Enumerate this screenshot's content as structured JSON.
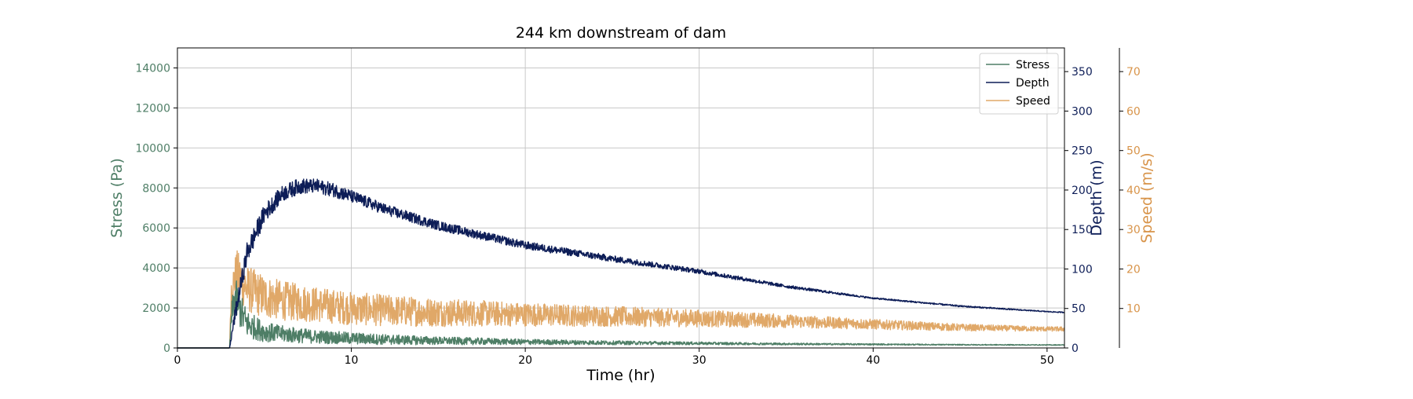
{
  "chart_data": {
    "type": "line",
    "title": "244 km downstream of dam",
    "xlabel": "Time (hr)",
    "xlim": [
      0,
      51
    ],
    "xticks": [
      0,
      10,
      20,
      30,
      40,
      50
    ],
    "grid": true,
    "legend_position": "top-right",
    "axes": [
      {
        "id": "stress",
        "side": "left",
        "label": "Stress (Pa)",
        "color": "#4e7e66",
        "ylim": [
          0,
          15000
        ],
        "ticks": [
          0,
          2000,
          4000,
          6000,
          8000,
          10000,
          12000,
          14000
        ]
      },
      {
        "id": "depth",
        "side": "right",
        "label": "Depth (m)",
        "color": "#0d1d57",
        "ylim": [
          0,
          380
        ],
        "ticks": [
          0,
          50,
          100,
          150,
          200,
          250,
          300,
          350
        ]
      },
      {
        "id": "speed",
        "side": "right-outer",
        "label": "Speed (m/s)",
        "color": "#d8944a",
        "ylim": [
          0,
          76
        ],
        "ticks": [
          10,
          20,
          30,
          40,
          50,
          60,
          70
        ]
      }
    ],
    "series": [
      {
        "name": "Stress",
        "axis": "stress",
        "color": "#4e7e66",
        "linewidth": 1.4,
        "x": [
          0,
          3.0,
          3.1,
          3.3,
          3.6,
          4,
          5,
          6,
          7,
          8,
          10,
          12,
          15,
          20,
          25,
          30,
          35,
          40,
          45,
          50,
          51
        ],
        "y": [
          0,
          0,
          1500,
          2600,
          1900,
          1200,
          800,
          700,
          620,
          560,
          480,
          420,
          360,
          300,
          260,
          230,
          200,
          180,
          160,
          150,
          150
        ],
        "noise": [
          0,
          0,
          600,
          1000,
          900,
          700,
          500,
          420,
          380,
          340,
          300,
          260,
          200,
          140,
          100,
          70,
          50,
          35,
          25,
          20,
          20
        ]
      },
      {
        "name": "Depth",
        "axis": "depth",
        "color": "#0d1d57",
        "linewidth": 1.4,
        "x": [
          0,
          3.0,
          3.3,
          4,
          5,
          6,
          7,
          8,
          9,
          10,
          12,
          15,
          20,
          25,
          30,
          35,
          40,
          45,
          50,
          51
        ],
        "y": [
          0,
          0,
          40,
          120,
          170,
          195,
          205,
          205,
          200,
          192,
          175,
          155,
          130,
          113,
          97,
          78,
          63,
          53,
          46,
          45
        ],
        "noise": [
          0,
          0,
          10,
          14,
          12,
          10,
          10,
          9,
          9,
          8,
          7,
          6,
          5,
          4,
          3,
          2,
          1,
          1,
          0.6,
          0.6
        ]
      },
      {
        "name": "Speed",
        "axis": "speed",
        "color": "#e0a868",
        "linewidth": 1.4,
        "x": [
          0,
          3.0,
          3.1,
          3.4,
          4,
          5,
          6,
          7,
          8,
          10,
          12,
          15,
          20,
          25,
          30,
          35,
          40,
          45,
          50,
          51
        ],
        "y": [
          0,
          0,
          15,
          19,
          15,
          13,
          12,
          11.5,
          11,
          10,
          9.5,
          9,
          8.5,
          8,
          7.5,
          6.8,
          6,
          5.2,
          4.8,
          4.8
        ],
        "noise": [
          0,
          0,
          4,
          6,
          6,
          5.5,
          5,
          4.8,
          4.5,
          4.2,
          4,
          3.6,
          3,
          2.6,
          2.2,
          1.7,
          1.3,
          0.9,
          0.6,
          0.6
        ]
      }
    ]
  }
}
